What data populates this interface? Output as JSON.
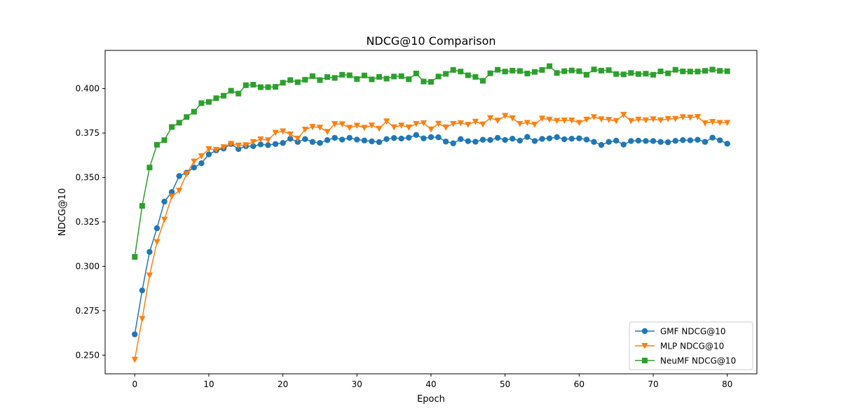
{
  "chart_data": {
    "type": "line",
    "title": "NDCG@10 Comparison",
    "xlabel": "Epoch",
    "ylabel": "NDCG@10",
    "xlim": [
      -4,
      84
    ],
    "ylim": [
      0.2395,
      0.4215
    ],
    "xticks": [
      0,
      10,
      20,
      30,
      40,
      50,
      60,
      70,
      80
    ],
    "xtick_labels": [
      "0",
      "10",
      "20",
      "30",
      "40",
      "50",
      "60",
      "70",
      "80"
    ],
    "yticks": [
      0.25,
      0.275,
      0.3,
      0.325,
      0.35,
      0.375,
      0.4
    ],
    "ytick_labels": [
      "0.250",
      "0.275",
      "0.300",
      "0.325",
      "0.350",
      "0.375",
      "0.400"
    ],
    "grid": false,
    "legend_position": "lower-right",
    "series": [
      {
        "name": "GMF NDCG@10",
        "color": "#1f77b4",
        "marker": "circle",
        "values": [
          0.2617,
          0.2864,
          0.3081,
          0.3214,
          0.3364,
          0.3418,
          0.3508,
          0.3527,
          0.3556,
          0.358,
          0.363,
          0.3652,
          0.3663,
          0.3688,
          0.366,
          0.3676,
          0.3676,
          0.3686,
          0.3682,
          0.3688,
          0.3694,
          0.3718,
          0.37,
          0.3716,
          0.37,
          0.3694,
          0.371,
          0.3723,
          0.3713,
          0.3723,
          0.3713,
          0.3708,
          0.3703,
          0.3699,
          0.3716,
          0.3722,
          0.3719,
          0.3724,
          0.3739,
          0.372,
          0.3727,
          0.3726,
          0.3702,
          0.3692,
          0.3716,
          0.3704,
          0.3701,
          0.3712,
          0.3711,
          0.3723,
          0.3711,
          0.3718,
          0.3707,
          0.3728,
          0.3705,
          0.3717,
          0.372,
          0.3727,
          0.3715,
          0.3718,
          0.372,
          0.3713,
          0.37,
          0.3683,
          0.37,
          0.3707,
          0.3685,
          0.3705,
          0.3707,
          0.3705,
          0.3705,
          0.37,
          0.3698,
          0.3706,
          0.371,
          0.3709,
          0.3712,
          0.37,
          0.3724,
          0.3709,
          0.369
        ]
      },
      {
        "name": "MLP NDCG@10",
        "color": "#ff7f0e",
        "marker": "triangle-down",
        "values": [
          0.2475,
          0.2704,
          0.2949,
          0.3137,
          0.3263,
          0.3393,
          0.3426,
          0.352,
          0.359,
          0.362,
          0.366,
          0.3656,
          0.3671,
          0.369,
          0.368,
          0.3682,
          0.37,
          0.3715,
          0.371,
          0.3752,
          0.376,
          0.3743,
          0.3719,
          0.377,
          0.3785,
          0.3781,
          0.3757,
          0.3801,
          0.38,
          0.378,
          0.3792,
          0.378,
          0.3793,
          0.3775,
          0.3816,
          0.3783,
          0.3793,
          0.3782,
          0.3802,
          0.3806,
          0.3771,
          0.3803,
          0.3782,
          0.3802,
          0.3806,
          0.3797,
          0.3814,
          0.3799,
          0.3835,
          0.382,
          0.3847,
          0.3834,
          0.3802,
          0.3808,
          0.3798,
          0.3832,
          0.3826,
          0.3819,
          0.3821,
          0.3821,
          0.3808,
          0.3826,
          0.384,
          0.3828,
          0.3825,
          0.3818,
          0.3853,
          0.3818,
          0.3826,
          0.3822,
          0.3828,
          0.3822,
          0.3829,
          0.383,
          0.384,
          0.3838,
          0.3841,
          0.3806,
          0.3813,
          0.3808,
          0.3808
        ]
      },
      {
        "name": "NeuMF NDCG@10",
        "color": "#2ca02c",
        "marker": "square",
        "values": [
          0.3053,
          0.334,
          0.3556,
          0.3684,
          0.371,
          0.3784,
          0.3808,
          0.384,
          0.387,
          0.3918,
          0.3925,
          0.3946,
          0.396,
          0.3988,
          0.3972,
          0.4019,
          0.4022,
          0.4008,
          0.4008,
          0.401,
          0.4033,
          0.4048,
          0.4036,
          0.405,
          0.407,
          0.4048,
          0.4065,
          0.406,
          0.4078,
          0.4075,
          0.4054,
          0.4074,
          0.4052,
          0.4066,
          0.4056,
          0.4068,
          0.407,
          0.4053,
          0.4085,
          0.404,
          0.4038,
          0.4068,
          0.4083,
          0.4105,
          0.4096,
          0.4075,
          0.4066,
          0.4044,
          0.4086,
          0.4106,
          0.4096,
          0.4101,
          0.4099,
          0.4085,
          0.4094,
          0.4105,
          0.4126,
          0.4088,
          0.4098,
          0.4102,
          0.4098,
          0.4078,
          0.4108,
          0.4101,
          0.4104,
          0.4082,
          0.408,
          0.4088,
          0.4082,
          0.4084,
          0.4078,
          0.4097,
          0.4086,
          0.4106,
          0.4097,
          0.4096,
          0.4096,
          0.41,
          0.4107,
          0.41,
          0.4098
        ]
      }
    ]
  }
}
